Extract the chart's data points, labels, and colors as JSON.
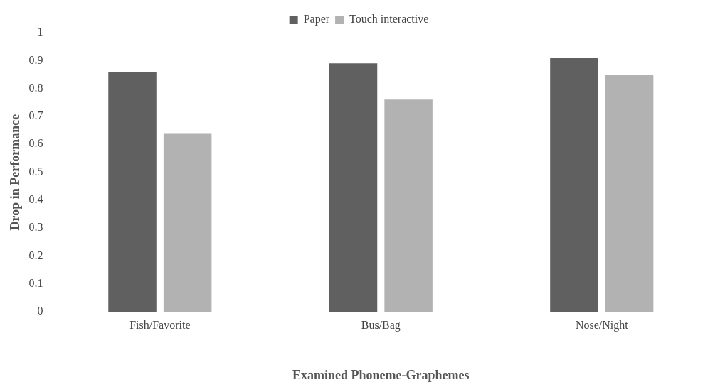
{
  "chart_data": {
    "type": "bar",
    "xlabel": "Examined Phoneme-Graphemes",
    "ylabel": "Drop in Performance",
    "categories": [
      "Fish/Favorite",
      "Bus/Bag",
      "Nose/Night"
    ],
    "series": [
      {
        "name": "Paper",
        "color": "#5f605f",
        "values": [
          0.86,
          0.89,
          0.91
        ]
      },
      {
        "name": "Touch interactive",
        "color": "#b2b2b2",
        "values": [
          0.64,
          0.76,
          0.85
        ]
      }
    ],
    "ylim": [
      0,
      1
    ],
    "yticks": [
      0,
      0.1,
      0.2,
      0.3,
      0.4,
      0.5,
      0.6,
      0.7,
      0.8,
      0.9,
      1
    ],
    "grid": false,
    "legend": "top"
  }
}
